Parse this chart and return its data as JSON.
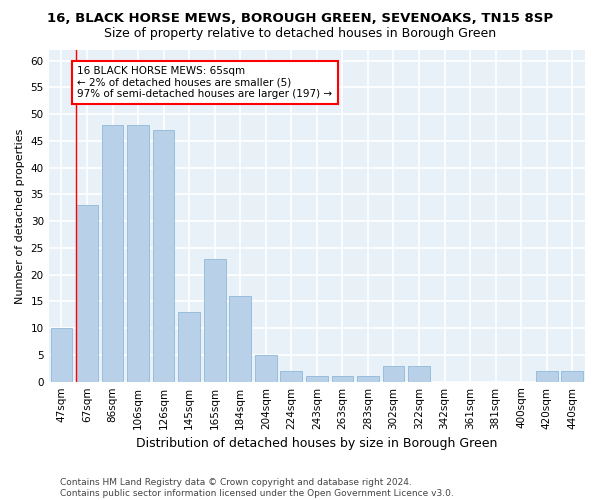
{
  "title": "16, BLACK HORSE MEWS, BOROUGH GREEN, SEVENOAKS, TN15 8SP",
  "subtitle": "Size of property relative to detached houses in Borough Green",
  "xlabel": "Distribution of detached houses by size in Borough Green",
  "ylabel": "Number of detached properties",
  "categories": [
    "47sqm",
    "67sqm",
    "86sqm",
    "106sqm",
    "126sqm",
    "145sqm",
    "165sqm",
    "184sqm",
    "204sqm",
    "224sqm",
    "243sqm",
    "263sqm",
    "283sqm",
    "302sqm",
    "322sqm",
    "342sqm",
    "361sqm",
    "381sqm",
    "400sqm",
    "420sqm",
    "440sqm"
  ],
  "values": [
    10,
    33,
    48,
    48,
    47,
    13,
    23,
    16,
    5,
    2,
    1,
    1,
    1,
    3,
    3,
    0,
    0,
    0,
    0,
    2,
    2
  ],
  "bar_color": "#b8d0e8",
  "bar_edge_color": "#90b8d8",
  "ylim": [
    0,
    62
  ],
  "yticks": [
    0,
    5,
    10,
    15,
    20,
    25,
    30,
    35,
    40,
    45,
    50,
    55,
    60
  ],
  "background_color": "#e8f0f8",
  "fig_background_color": "#ffffff",
  "grid_color": "#ffffff",
  "annotation_text_line1": "16 BLACK HORSE MEWS: 65sqm",
  "annotation_text_line2": "← 2% of detached houses are smaller (5)",
  "annotation_text_line3": "97% of semi-detached houses are larger (197) →",
  "footer_line1": "Contains HM Land Registry data © Crown copyright and database right 2024.",
  "footer_line2": "Contains public sector information licensed under the Open Government Licence v3.0.",
  "title_fontsize": 9.5,
  "subtitle_fontsize": 9,
  "xlabel_fontsize": 9,
  "ylabel_fontsize": 8,
  "tick_fontsize": 7.5,
  "annotation_fontsize": 7.5,
  "footer_fontsize": 6.5
}
